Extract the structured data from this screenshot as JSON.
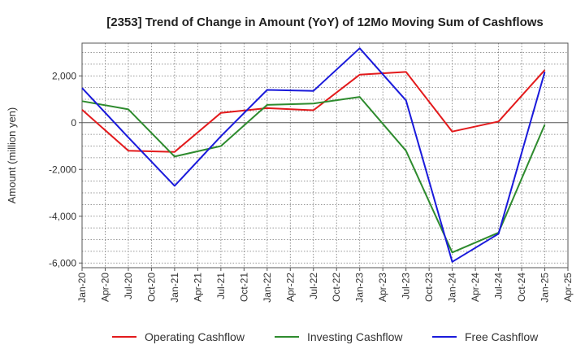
{
  "chart_data": {
    "type": "line",
    "title": "[2353]  Trend of Change in Amount (YoY) of 12Mo Moving Sum of Cashflows",
    "xlabel": "",
    "ylabel": "Amount (million yen)",
    "ylim": [
      -6200,
      3400
    ],
    "yticks": [
      2000,
      0,
      -2000,
      -4000,
      -6000
    ],
    "ytick_labels": [
      "2,000",
      "0",
      "-2,000",
      "-4,000",
      "-6,000"
    ],
    "categories": [
      "Jan-20",
      "Apr-20",
      "Jul-20",
      "Oct-20",
      "Jan-21",
      "Apr-21",
      "Jul-21",
      "Oct-21",
      "Jan-22",
      "Apr-22",
      "Jul-22",
      "Oct-22",
      "Jan-23",
      "Apr-23",
      "Jul-23",
      "Oct-23",
      "Jan-24",
      "Apr-24",
      "Jul-24",
      "Oct-24",
      "Jan-25",
      "Apr-25"
    ],
    "grid": true,
    "legend_position": "bottom",
    "series": [
      {
        "name": "Operating Cashflow",
        "color": "#e31a1c",
        "values": [
          550,
          null,
          -1200,
          null,
          -1250,
          null,
          420,
          null,
          620,
          null,
          530,
          null,
          2050,
          null,
          2170,
          null,
          -380,
          null,
          50,
          null,
          2250,
          null
        ]
      },
      {
        "name": "Investing Cashflow",
        "color": "#2e8b2e",
        "values": [
          920,
          null,
          570,
          null,
          -1450,
          null,
          -1000,
          null,
          760,
          null,
          820,
          null,
          1100,
          null,
          -1200,
          null,
          -5550,
          null,
          -4700,
          null,
          -80,
          null
        ]
      },
      {
        "name": "Free Cashflow",
        "color": "#1a1adb",
        "values": [
          1480,
          null,
          -630,
          null,
          -2700,
          null,
          -580,
          null,
          1400,
          null,
          1360,
          null,
          3180,
          null,
          950,
          null,
          -5950,
          null,
          -4750,
          null,
          2170,
          null
        ]
      }
    ]
  }
}
